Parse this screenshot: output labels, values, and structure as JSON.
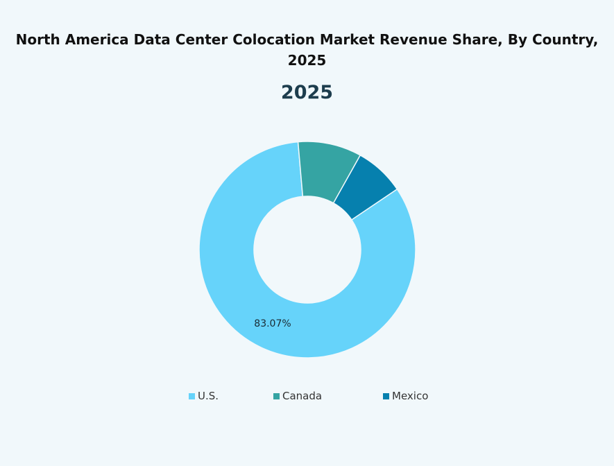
{
  "chart_data": {
    "type": "pie",
    "style": "donut",
    "title": "North America Data Center Colocation Market Revenue Share, By Country, 2025",
    "subtitle": "2025",
    "categories": [
      "U.S.",
      "Canada",
      "Mexico"
    ],
    "values": [
      83.07,
      9.5,
      7.43
    ],
    "labels": [
      "83.07%",
      "",
      ""
    ],
    "colors": [
      "#66d3fa",
      "#35a4a3",
      "#0680ae"
    ],
    "legend_position": "bottom"
  }
}
